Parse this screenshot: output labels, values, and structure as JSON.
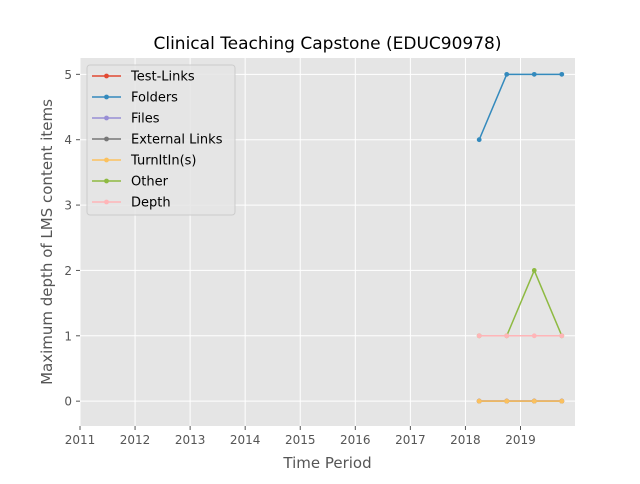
{
  "chart_data": {
    "type": "line",
    "title": "Clinical Teaching Capstone (EDUC90978)",
    "xlabel": "Time Period",
    "ylabel": "Maximum depth of LMS content items",
    "xlim": [
      2011.0,
      2019.99
    ],
    "ylim": [
      -0.38,
      5.25
    ],
    "x_ticks": [
      2011,
      2012,
      2013,
      2014,
      2015,
      2016,
      2017,
      2018,
      2019
    ],
    "x_tick_labels": [
      "2011",
      "2012",
      "2013",
      "2014",
      "2015",
      "2016",
      "2017",
      "2018",
      "2019"
    ],
    "y_ticks": [
      0,
      1,
      2,
      3,
      4,
      5
    ],
    "y_tick_labels": [
      "0",
      "1",
      "2",
      "3",
      "4",
      "5"
    ],
    "grid": true,
    "legend_position": "upper-left",
    "x": [
      2018.25,
      2018.75,
      2019.25,
      2019.75
    ],
    "series": [
      {
        "name": "Test-Links",
        "color": "#e24a33",
        "values": [
          0,
          0,
          0,
          0
        ]
      },
      {
        "name": "Folders",
        "color": "#348abd",
        "values": [
          4,
          5,
          5,
          5
        ]
      },
      {
        "name": "Files",
        "color": "#988ed5",
        "values": [
          0,
          0,
          0,
          0
        ]
      },
      {
        "name": "External Links",
        "color": "#777777",
        "values": [
          0,
          0,
          0,
          0
        ]
      },
      {
        "name": "TurnItIn(s)",
        "color": "#fbc15e",
        "values": [
          0,
          0,
          0,
          0
        ]
      },
      {
        "name": "Other",
        "color": "#8eba42",
        "values": [
          1,
          1,
          2,
          1
        ]
      },
      {
        "name": "Depth",
        "color": "#ffb5b8",
        "values": [
          1,
          1,
          1,
          1
        ]
      }
    ]
  }
}
